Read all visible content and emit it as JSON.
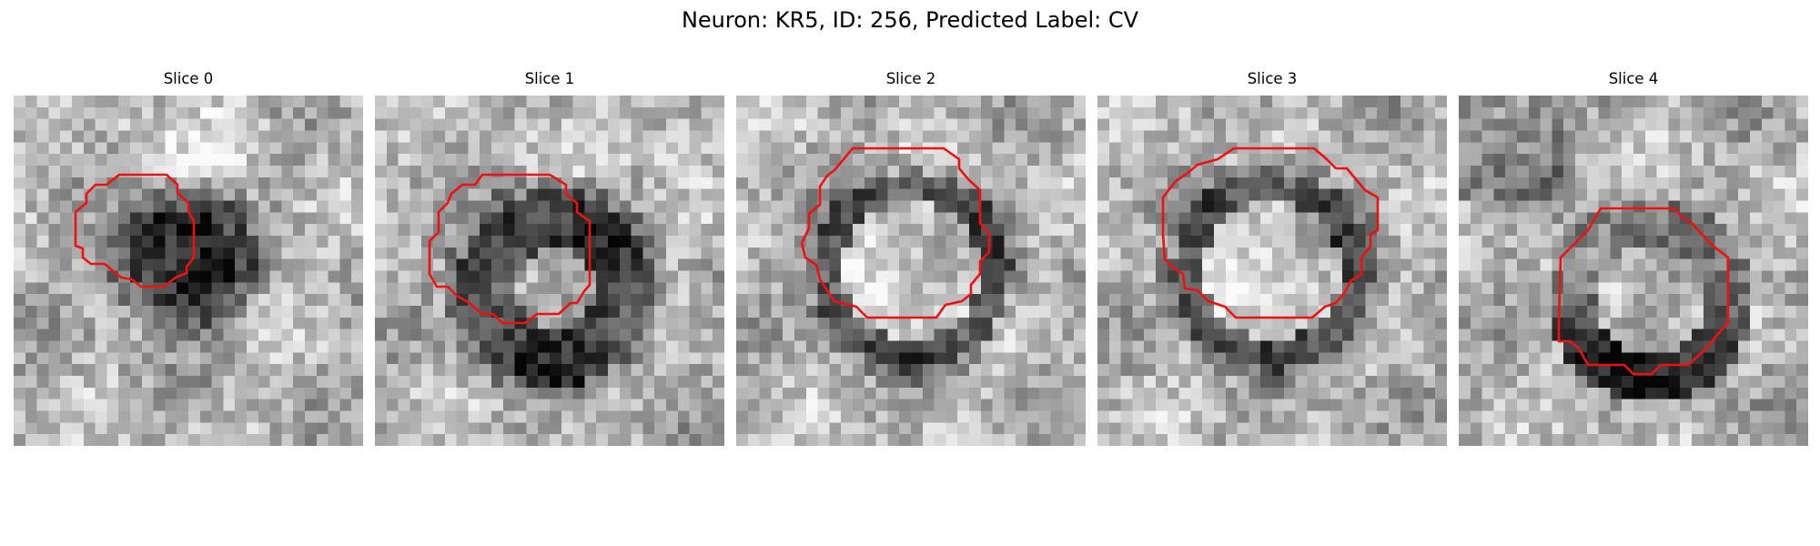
{
  "figure": {
    "title": "Neuron: KR5, ID: 256, Predicted Label: CV",
    "contour_color": "#ee1111"
  },
  "slices": [
    {
      "title": "Slice 0",
      "style": "dark_blob"
    },
    {
      "title": "Slice 1",
      "style": "dark_ring"
    },
    {
      "title": "Slice 2",
      "style": "bright_center"
    },
    {
      "title": "Slice 3",
      "style": "bright_center"
    },
    {
      "title": "Slice 4",
      "style": "lower_crescent"
    }
  ]
}
